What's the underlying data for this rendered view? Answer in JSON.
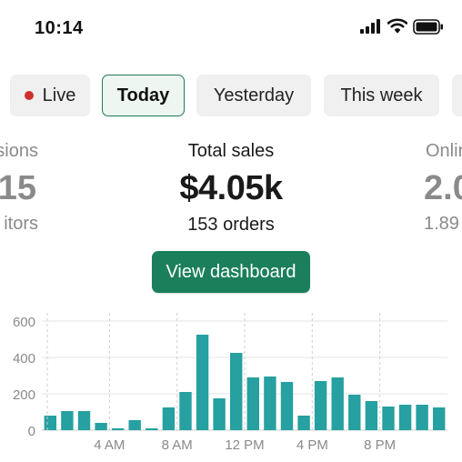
{
  "status_bar": {
    "time": "10:14",
    "icons": [
      "cellular-signal-icon",
      "wifi-icon",
      "battery-icon"
    ]
  },
  "filters": [
    {
      "label": "Live",
      "has_dot": true,
      "active": false
    },
    {
      "label": "Today",
      "active": true
    },
    {
      "label": "Yesterday",
      "active": false
    },
    {
      "label": "This week",
      "active": false
    }
  ],
  "metrics": {
    "left": {
      "label": "sions",
      "value": "15",
      "sub": "itors"
    },
    "center": {
      "label": "Total sales",
      "value": "$4.05k",
      "sub": "153 orders"
    },
    "right": {
      "label": "Onlin",
      "value": "2.0",
      "sub": "1.89"
    }
  },
  "cta": {
    "label": "View dashboard"
  },
  "colors": {
    "accent": "#1b7f5c",
    "bar": "#26a0a0",
    "live_dot": "#d0312d",
    "muted_text": "#8a8a8a"
  },
  "chart_data": {
    "type": "bar",
    "ylim": [
      0,
      600
    ],
    "yticks": [
      "600",
      "400",
      "200",
      "0"
    ],
    "xticks": [
      "4 AM",
      "8 AM",
      "12 PM",
      "4 PM",
      "8 PM"
    ],
    "values": [
      80,
      105,
      105,
      40,
      10,
      55,
      10,
      125,
      210,
      525,
      175,
      425,
      290,
      295,
      265,
      80,
      270,
      290,
      195,
      160,
      130,
      140,
      140,
      125
    ],
    "grid": true
  }
}
